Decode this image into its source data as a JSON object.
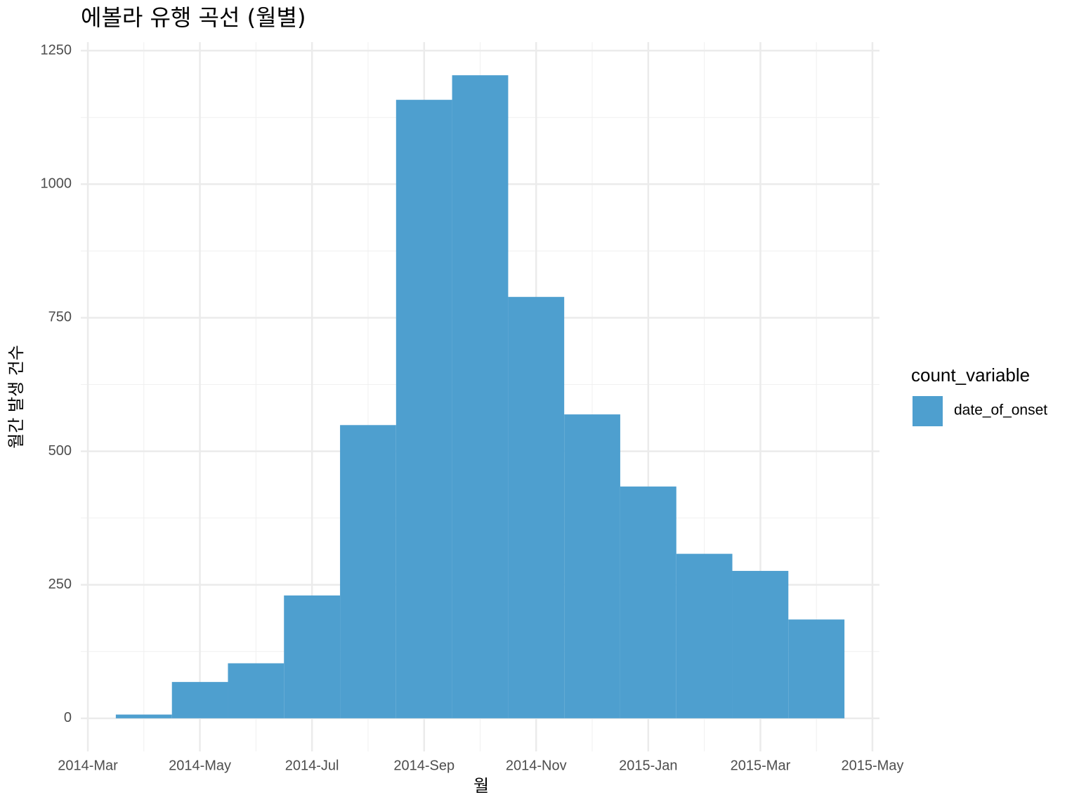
{
  "chart_data": {
    "type": "histogram",
    "title": "에볼라 유행 곡선 (월별)",
    "x_label": "월",
    "y_label": "월간 발생 건수",
    "legend_title": "count_variable",
    "legend": "right",
    "bins": [
      2014.2083,
      2014.2917,
      2014.375,
      2014.4583,
      2014.5417,
      2014.625,
      2014.7083,
      2014.7917,
      2014.875,
      2014.9583,
      2015.0417,
      2015.125,
      2015.2083,
      2015.2917
    ],
    "series": [
      {
        "name": "date_of_onset",
        "color": "#4e9fcf",
        "values": [
          7,
          68,
          103,
          230,
          549,
          1158,
          1204,
          789,
          569,
          434,
          308,
          276,
          185
        ]
      }
    ],
    "xlim": [
      2014.1562,
      2015.3438
    ],
    "xticks": [
      {
        "value": 2014.1667,
        "label": "2014-Mar"
      },
      {
        "value": 2014.3333,
        "label": "2014-May"
      },
      {
        "value": 2014.5,
        "label": "2014-Jul"
      },
      {
        "value": 2014.6667,
        "label": "2014-Sep"
      },
      {
        "value": 2014.8333,
        "label": "2014-Nov"
      },
      {
        "value": 2015.0,
        "label": "2015-Jan"
      },
      {
        "value": 2015.1667,
        "label": "2015-Mar"
      },
      {
        "value": 2015.3333,
        "label": "2015-May"
      }
    ],
    "ylim": [
      -62,
      1266
    ],
    "yticks": [
      0,
      250,
      500,
      750,
      1000,
      1250
    ],
    "grid": true
  }
}
